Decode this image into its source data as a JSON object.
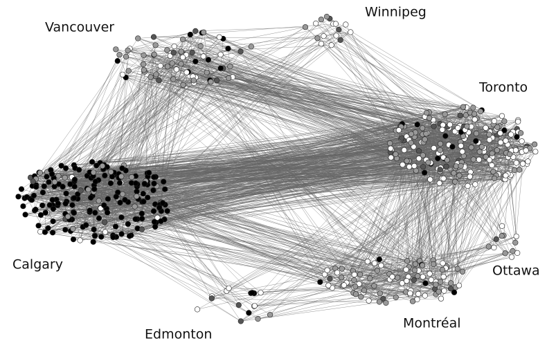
{
  "labels": [
    "Vancouver",
    "Winnipeg",
    "Toronto",
    "Calgary",
    "Ottawa",
    "Montréal",
    "Edmonton"
  ]
}
